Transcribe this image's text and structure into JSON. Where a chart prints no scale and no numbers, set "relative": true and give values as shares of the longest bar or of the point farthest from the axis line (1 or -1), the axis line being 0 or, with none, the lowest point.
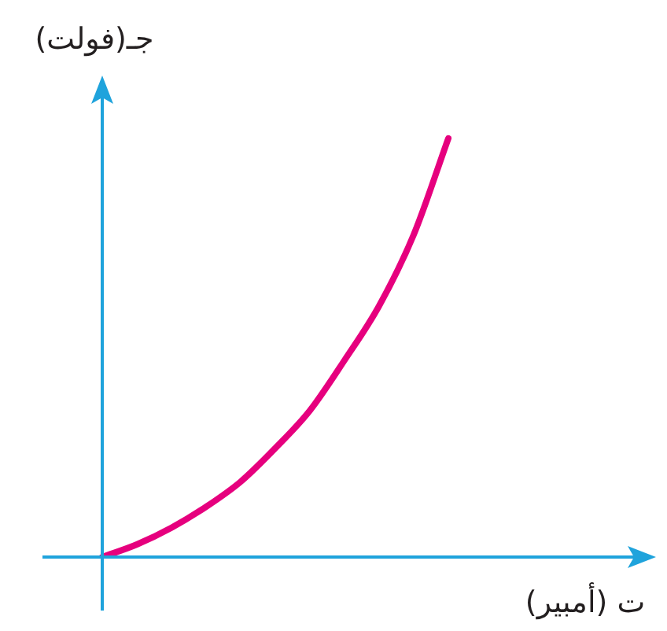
{
  "chart_data": {
    "type": "line",
    "relative": true,
    "xlabel": "ت (أمبير)",
    "ylabel": "جـ(فولت)",
    "categories": [
      null,
      null,
      null,
      null,
      null,
      null,
      null,
      null,
      null,
      null,
      null,
      null,
      null,
      null,
      null,
      null,
      null
    ],
    "series": [
      {
        "color": "#e6007e",
        "values": [
          0,
          0.03,
          0.07,
          0.12,
          0.18,
          0.26,
          0.35,
          0.47,
          0.6,
          0.77,
          1,
          null,
          null,
          null,
          null,
          null,
          null
        ]
      }
    ],
    "marker": "none",
    "line_style": "solid",
    "legend": false
  }
}
